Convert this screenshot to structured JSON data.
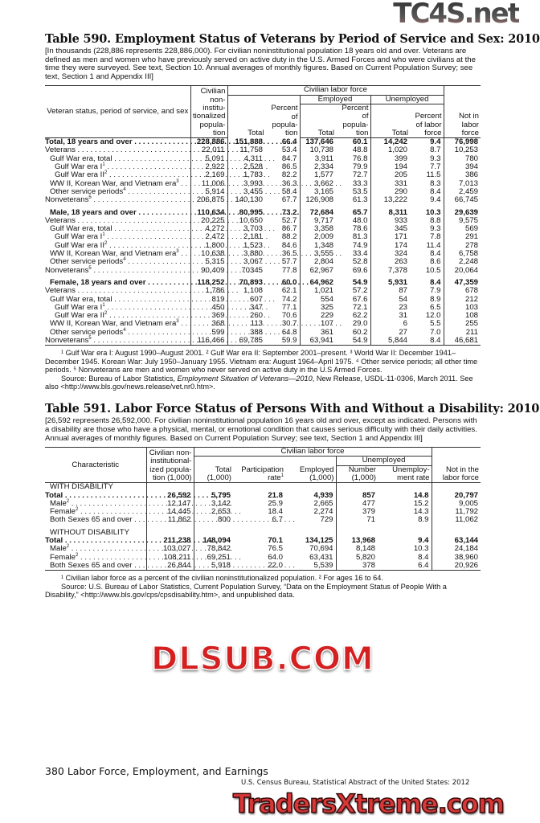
{
  "watermarks": {
    "top": "TC4S.net",
    "middle": "DLSUB.COM",
    "bottom": "TradersXtreme.com"
  },
  "t590": {
    "title": "Table 590. Employment Status of Veterans by Period of Service and Sex: 2010",
    "headnote": "[In thousands (228,886 represents 228,886,000). For civilian noninstitutional population 18 years old and over. Veterans are defined as men and women who have previously served on active duty in the U.S. Armed Forces and who were civilians at the time they were surveyed. See text, Section 10. Annual averages of monthly figures. Based on Current Population Survey; see text, Section 1 and Appendix III]",
    "headers": {
      "stub": "Veteran status, period of service, and sex",
      "civ": "Civilian non-institu-tionalized popula-tion",
      "clf": "Civilian labor force",
      "employed": "Employed",
      "unemployed": "Unemployed",
      "total": "Total",
      "pct_pop": "Percent of popula-tion",
      "pct_lf": "Percent of labor force",
      "not_in": "Not in labor force"
    },
    "rows": [
      {
        "label": "Total, 18 years and over",
        "indent": 0,
        "bold": true,
        "values": [
          "228,886",
          "151,888",
          "66.4",
          "137,646",
          "60.1",
          "14,242",
          "9.4",
          "76,998"
        ]
      },
      {
        "label": "Veterans",
        "indent": 0,
        "values": [
          "22,011",
          "11,758",
          "53.4",
          "10,738",
          "48.8",
          "1,020",
          "8.7",
          "10,253"
        ]
      },
      {
        "label": "Gulf War era, total",
        "indent": 1,
        "values": [
          "5,091",
          "4,311",
          "84.7",
          "3,911",
          "76.8",
          "399",
          "9.3",
          "780"
        ]
      },
      {
        "label": "Gulf War era I",
        "sup": "1",
        "indent": 2,
        "values": [
          "2,922",
          "2,528",
          "86.5",
          "2,334",
          "79.9",
          "194",
          "7.7",
          "394"
        ]
      },
      {
        "label": "Gulf War era II",
        "sup": "2",
        "indent": 2,
        "values": [
          "2,169",
          "1,783",
          "82.2",
          "1,577",
          "72.7",
          "205",
          "11.5",
          "386"
        ]
      },
      {
        "label": "WW II, Korean War, and Vietnam era",
        "sup": "3",
        "indent": 1,
        "values": [
          "11,006",
          "3,993",
          "36.3",
          "3,662",
          "33.3",
          "331",
          "8.3",
          "7,013"
        ]
      },
      {
        "label": "Other service periods",
        "sup": "4",
        "indent": 1,
        "values": [
          "5,914",
          "3,455",
          "58.4",
          "3,165",
          "53.5",
          "290",
          "8.4",
          "2,459"
        ]
      },
      {
        "label": "Nonveterans",
        "sup": "5",
        "indent": 0,
        "values": [
          "206,875",
          "140,130",
          "67.7",
          "126,908",
          "61.3",
          "13,222",
          "9.4",
          "66,745"
        ]
      },
      {
        "spacer": true
      },
      {
        "label": "Male, 18 years and over",
        "indent": 1,
        "bold": true,
        "values": [
          "110,634",
          "80,995",
          "73.2",
          "72,684",
          "65.7",
          "8,311",
          "10.3",
          "29,639"
        ]
      },
      {
        "label": "Veterans",
        "indent": 0,
        "values": [
          "20,225",
          "10,650",
          "52.7",
          "9,717",
          "48.0",
          "933",
          "8.8",
          "9,575"
        ]
      },
      {
        "label": "Gulf War era, total",
        "indent": 1,
        "values": [
          "4,272",
          "3,703",
          "86.7",
          "3,358",
          "78.6",
          "345",
          "9.3",
          "569"
        ]
      },
      {
        "label": "Gulf War era I",
        "sup": "1",
        "indent": 2,
        "values": [
          "2,472",
          "2,181",
          "88.2",
          "2,009",
          "81.3",
          "171",
          "7.8",
          "291"
        ]
      },
      {
        "label": "Gulf War era II",
        "sup": "2",
        "indent": 2,
        "values": [
          "1,800",
          "1,523",
          "84.6",
          "1,348",
          "74.9",
          "174",
          "11.4",
          "278"
        ]
      },
      {
        "label": "WW II, Korean War, and Vietnam era",
        "sup": "3",
        "indent": 1,
        "values": [
          "10,638",
          "3,880",
          "36.5",
          "3,555",
          "33.4",
          "324",
          "8.4",
          "6,758"
        ]
      },
      {
        "label": "Other service periods",
        "sup": "4",
        "indent": 1,
        "values": [
          "5,315",
          "3,067",
          "57.7",
          "2,804",
          "52.8",
          "263",
          "8.6",
          "2,248"
        ]
      },
      {
        "label": "Nonveterans",
        "sup": "5",
        "indent": 0,
        "values": [
          "90,409",
          "70345",
          "77.8",
          "62,967",
          "69.6",
          "7,378",
          "10.5",
          "20,064"
        ]
      },
      {
        "spacer": true
      },
      {
        "label": "Female, 18 years and over",
        "indent": 1,
        "bold": true,
        "values": [
          "118,252",
          "70,893",
          "60.0",
          "64,962",
          "54.9",
          "5,931",
          "8.4",
          "47,359"
        ]
      },
      {
        "label": "Veterans",
        "indent": 0,
        "values": [
          "1,786",
          "1,108",
          "62.1",
          "1,021",
          "57.2",
          "87",
          "7.9",
          "678"
        ]
      },
      {
        "label": "Gulf War era, total",
        "indent": 1,
        "values": [
          "819",
          "607",
          "74.2",
          "554",
          "67.6",
          "54",
          "8.9",
          "212"
        ]
      },
      {
        "label": "Gulf War era I",
        "sup": "1",
        "indent": 2,
        "values": [
          "450",
          "347",
          "77.1",
          "325",
          "72.1",
          "23",
          "6.5",
          "103"
        ]
      },
      {
        "label": "Gulf War era II",
        "sup": "2",
        "indent": 2,
        "values": [
          "369",
          "260",
          "70.6",
          "229",
          "62.2",
          "31",
          "12.0",
          "108"
        ]
      },
      {
        "label": "WW II, Korean War, and Vietnam era",
        "sup": "3",
        "indent": 1,
        "values": [
          "368",
          "113",
          "30.7",
          "107",
          "29.0",
          "6",
          "5.5",
          "255"
        ]
      },
      {
        "label": "Other service periods",
        "sup": "4",
        "indent": 1,
        "values": [
          "599",
          "388",
          "64.8",
          "361",
          "60.2",
          "27",
          "7.0",
          "211"
        ]
      },
      {
        "label": "Nonveterans",
        "sup": "5",
        "indent": 0,
        "values": [
          "116,466",
          "69,785",
          "59.9",
          "63,941",
          "54.9",
          "5,844",
          "8.4",
          "46,681"
        ]
      }
    ],
    "footnotes": "¹ Gulf War era I: August 1990–August 2001. ² Gulf War era II:  September 2001–present. ³ World War II: December 1941–December 1945. Korean War: July 1950–January 1955. Vietnam era: August 1964–April 1975. ⁴ Other service periods; all other time periods. ⁵ Nonveterans are men and women who never served on active duty in the U.S Armed Forces.",
    "source_pre": "Source: Bureau of Labor Statistics, ",
    "source_ital": "Employment Situation of Veterans—2010",
    "source_post": ", New Release, USDL-11-0306, March 2011. See also <http://www.bls.gov/news.release/vet.nr0.htm>."
  },
  "t591": {
    "title": "Table 591. Labor Force Status of Persons With and Without a Disability: 2010",
    "headnote": "[26,592 represents 26,592,000. For civilian noninstitutional population 16 years old and over, except as indicated. Persons with a disability are those who have a physical, mental, or emotional condition that causes serious difficulty with their daily activities. Annual averages of monthly figures. Based on Current Population Survey; see text, Section 1 and Appendix III]",
    "headers": {
      "stub": "Characteristic",
      "civ": "Civilian non-institutional-ized popula-tion (1,000)",
      "clf": "Civilian labor force",
      "unemployed": "Unemployed",
      "total": "Total (1,000)",
      "participation": "Participation rate",
      "participation_sup": "1",
      "employed": "Employed (1,000)",
      "number": "Number (1,000)",
      "rate": "Unemploy-ment rate",
      "not_in": "Not in the labor force"
    },
    "rows": [
      {
        "label": "WITH DISABILITY",
        "heading": true,
        "indent": 1
      },
      {
        "label": "Total",
        "indent": 0,
        "bold": true,
        "values": [
          "26,592",
          "5,795",
          "21.8",
          "4,939",
          "857",
          "14.8",
          "20,797"
        ]
      },
      {
        "label": "Male",
        "sup": "2",
        "indent": 1,
        "values": [
          "12,147",
          "3,142",
          "25.9",
          "2,665",
          "477",
          "15.2",
          "9,005"
        ]
      },
      {
        "label": "Female",
        "sup": "2",
        "indent": 1,
        "values": [
          "14,445",
          "2,653",
          "18.4",
          "2,274",
          "379",
          "14.3",
          "11,792"
        ]
      },
      {
        "label": "Both Sexes 65 and over",
        "indent": 1,
        "values": [
          "11,862",
          "800",
          "6.7",
          "729",
          "71",
          "8.9",
          "11,062"
        ]
      },
      {
        "spacer": true
      },
      {
        "label": "WITHOUT DISABILITY",
        "heading": true,
        "indent": 1
      },
      {
        "label": "Total",
        "indent": 0,
        "bold": true,
        "values": [
          "211,238",
          "148,094",
          "70.1",
          "134,125",
          "13,968",
          "9.4",
          "63,144"
        ]
      },
      {
        "label": "Male",
        "sup": "2",
        "indent": 1,
        "values": [
          "103,027",
          "78,842",
          "76.5",
          "70,694",
          "8,148",
          "10.3",
          "24,184"
        ]
      },
      {
        "label": "Female",
        "sup": "2",
        "indent": 1,
        "values": [
          "108,211",
          "69,251",
          "64.0",
          "63,431",
          "5,820",
          "8.4",
          "38,960"
        ]
      },
      {
        "label": "Both Sexes 65 and over",
        "indent": 1,
        "values": [
          "26,844",
          "5,918",
          "22.0",
          "5,539",
          "378",
          "6.4",
          "20,926"
        ]
      }
    ],
    "footnotes": "¹ Civilian labor force as a percent of the civilian noninstitutionalized population. ² For ages 16 to 64.",
    "source": "Source: U.S. Bureau of Labor Statistics, Current Population Survey, “Data on the Employment Status of People With a Disability,” <http://www.bls.gov/cps/cpsdisability.htm>, and unpublished data."
  },
  "footer": {
    "page": "380  Labor Force, Employment, and Earnings",
    "publication": "U.S. Census Bureau, Statistical Abstract of the United States: 2012"
  }
}
